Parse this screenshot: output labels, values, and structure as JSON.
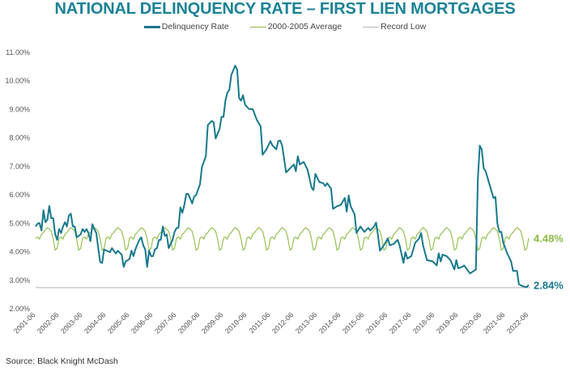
{
  "chart_data": {
    "type": "line",
    "title": "NATIONAL DELINQUENCY RATE – FIRST LIEN MORTGAGES",
    "source": "Source: Black Knight McDash",
    "ylim": [
      2,
      11
    ],
    "y_ticks": [
      "2.00%",
      "3.00%",
      "4.00%",
      "5.00%",
      "6.00%",
      "7.00%",
      "8.00%",
      "9.00%",
      "10.00%",
      "11.00%"
    ],
    "x_ticks": [
      "2001-06",
      "2002-06",
      "2003-06",
      "2004-06",
      "2005-06",
      "2006-06",
      "2007-06",
      "2008-06",
      "2009-06",
      "2010-06",
      "2011-06",
      "2012-06",
      "2013-06",
      "2014-06",
      "2015-06",
      "2016-06",
      "2017-06",
      "2018-06",
      "2019-06",
      "2020-06",
      "2021-06",
      "2022-06"
    ],
    "grid": false,
    "legend_position": "top",
    "colors": {
      "delinquency": "#17788c",
      "average": "#8dbb45",
      "record_low": "#b5b5b5",
      "title": "#1b8296"
    },
    "series": [
      {
        "name": "Delinquency Rate",
        "end_label": "2.84%",
        "points": [
          [
            "2001-06",
            4.89
          ],
          [
            "2001-07",
            4.99
          ],
          [
            "2001-08",
            5.01
          ],
          [
            "2001-09",
            4.75
          ],
          [
            "2001-10",
            5.46
          ],
          [
            "2001-11",
            5.04
          ],
          [
            "2001-12",
            5.13
          ],
          [
            "2002-01",
            5.61
          ],
          [
            "2002-02",
            5.18
          ],
          [
            "2002-03",
            5.18
          ],
          [
            "2002-04",
            4.61
          ],
          [
            "2002-05",
            4.42
          ],
          [
            "2002-06",
            4.8
          ],
          [
            "2002-07",
            4.66
          ],
          [
            "2002-08",
            4.89
          ],
          [
            "2002-09",
            5.04
          ],
          [
            "2002-10",
            4.89
          ],
          [
            "2002-11",
            5.27
          ],
          [
            "2002-12",
            5.34
          ],
          [
            "2003-01",
            4.89
          ],
          [
            "2003-02",
            4.89
          ],
          [
            "2003-03",
            4.51
          ],
          [
            "2003-05",
            4.61
          ],
          [
            "2003-06",
            4.8
          ],
          [
            "2003-07",
            4.7
          ],
          [
            "2003-08",
            4.8
          ],
          [
            "2003-09",
            4.66
          ],
          [
            "2003-10",
            4.37
          ],
          [
            "2003-11",
            4.97
          ],
          [
            "2003-12",
            4.8
          ],
          [
            "2004-01",
            4.66
          ],
          [
            "2004-02",
            4.13
          ],
          [
            "2004-03",
            3.64
          ],
          [
            "2004-04",
            3.61
          ],
          [
            "2004-05",
            4.08
          ],
          [
            "2004-08",
            3.99
          ],
          [
            "2004-09",
            4.13
          ],
          [
            "2004-11",
            3.94
          ],
          [
            "2004-12",
            4.04
          ],
          [
            "2005-02",
            3.9
          ],
          [
            "2005-03",
            3.47
          ],
          [
            "2005-04",
            3.66
          ],
          [
            "2005-06",
            3.75
          ],
          [
            "2005-07",
            4.04
          ],
          [
            "2005-08",
            3.85
          ],
          [
            "2005-09",
            4.09
          ],
          [
            "2005-11",
            4.42
          ],
          [
            "2005-12",
            4.51
          ],
          [
            "2006-01",
            4.23
          ],
          [
            "2006-02",
            4.09
          ],
          [
            "2006-03",
            3.47
          ],
          [
            "2006-04",
            4.04
          ],
          [
            "2006-05",
            3.85
          ],
          [
            "2006-06",
            3.85
          ],
          [
            "2006-07",
            4.09
          ],
          [
            "2006-08",
            4.13
          ],
          [
            "2006-09",
            4.42
          ],
          [
            "2006-10",
            4.42
          ],
          [
            "2006-11",
            4.89
          ],
          [
            "2006-12",
            4.56
          ],
          [
            "2007-01",
            4.61
          ],
          [
            "2007-02",
            4.13
          ],
          [
            "2007-04",
            4.42
          ],
          [
            "2007-05",
            4.7
          ],
          [
            "2007-06",
            4.83
          ],
          [
            "2007-07",
            4.85
          ],
          [
            "2007-08",
            5.56
          ],
          [
            "2007-09",
            5.37
          ],
          [
            "2007-10",
            5.65
          ],
          [
            "2007-11",
            6.03
          ],
          [
            "2007-12",
            6.03
          ],
          [
            "2008-02",
            5.7
          ],
          [
            "2008-03",
            5.94
          ],
          [
            "2008-04",
            5.99
          ],
          [
            "2008-06",
            6.37
          ],
          [
            "2008-07",
            6.98
          ],
          [
            "2008-09",
            7.36
          ],
          [
            "2008-10",
            8.45
          ],
          [
            "2008-12",
            8.6
          ],
          [
            "2009-01",
            8.55
          ],
          [
            "2009-02",
            7.98
          ],
          [
            "2009-04",
            8.31
          ],
          [
            "2009-05",
            8.74
          ],
          [
            "2009-06",
            8.74
          ],
          [
            "2009-07",
            9.31
          ],
          [
            "2009-08",
            9.59
          ],
          [
            "2009-09",
            9.69
          ],
          [
            "2009-10",
            10.21
          ],
          [
            "2009-12",
            10.54
          ],
          [
            "2010-01",
            10.4
          ],
          [
            "2010-02",
            9.4
          ],
          [
            "2010-03",
            9.31
          ],
          [
            "2010-04",
            9.5
          ],
          [
            "2010-05",
            9.17
          ],
          [
            "2010-07",
            9.02
          ],
          [
            "2010-09",
            9.01
          ],
          [
            "2010-11",
            8.64
          ],
          [
            "2011-01",
            8.41
          ],
          [
            "2011-02",
            7.41
          ],
          [
            "2011-04",
            7.6
          ],
          [
            "2011-06",
            7.89
          ],
          [
            "2011-07",
            7.74
          ],
          [
            "2011-09",
            7.6
          ],
          [
            "2011-10",
            7.89
          ],
          [
            "2011-11",
            7.91
          ],
          [
            "2011-12",
            7.73
          ],
          [
            "2012-02",
            6.79
          ],
          [
            "2012-06",
            7.07
          ],
          [
            "2012-07",
            6.83
          ],
          [
            "2012-08",
            7.36
          ],
          [
            "2012-09",
            7.07
          ],
          [
            "2012-11",
            7.16
          ],
          [
            "2013-01",
            6.88
          ],
          [
            "2013-03",
            6.26
          ],
          [
            "2013-04",
            6.17
          ],
          [
            "2013-05",
            6.74
          ],
          [
            "2013-07",
            6.45
          ],
          [
            "2013-09",
            6.41
          ],
          [
            "2013-10",
            6.31
          ],
          [
            "2013-11",
            6.41
          ],
          [
            "2014-01",
            6.22
          ],
          [
            "2014-02",
            5.51
          ],
          [
            "2014-04",
            5.6
          ],
          [
            "2014-06",
            5.65
          ],
          [
            "2014-08",
            5.89
          ],
          [
            "2014-09",
            5.41
          ],
          [
            "2014-10",
            5.98
          ],
          [
            "2014-11",
            5.6
          ],
          [
            "2015-01",
            5.32
          ],
          [
            "2015-02",
            4.66
          ],
          [
            "2015-04",
            4.89
          ],
          [
            "2015-06",
            4.7
          ],
          [
            "2015-08",
            4.84
          ],
          [
            "2015-09",
            4.75
          ],
          [
            "2015-11",
            4.89
          ],
          [
            "2015-12",
            5.03
          ],
          [
            "2016-01",
            4.56
          ],
          [
            "2016-02",
            4.04
          ],
          [
            "2016-04",
            4.23
          ],
          [
            "2016-06",
            4.47
          ],
          [
            "2016-07",
            4.23
          ],
          [
            "2016-09",
            4.28
          ],
          [
            "2016-11",
            4.42
          ],
          [
            "2016-12",
            4.23
          ],
          [
            "2017-02",
            3.61
          ],
          [
            "2017-03",
            3.99
          ],
          [
            "2017-04",
            3.76
          ],
          [
            "2017-06",
            3.85
          ],
          [
            "2017-08",
            4.32
          ],
          [
            "2017-10",
            4.47
          ],
          [
            "2017-11",
            4.66
          ],
          [
            "2017-12",
            4.23
          ],
          [
            "2018-02",
            3.71
          ],
          [
            "2018-05",
            3.66
          ],
          [
            "2018-07",
            3.52
          ],
          [
            "2018-08",
            3.95
          ],
          [
            "2018-09",
            3.66
          ],
          [
            "2018-10",
            3.9
          ],
          [
            "2018-12",
            3.85
          ],
          [
            "2019-02",
            3.71
          ],
          [
            "2019-04",
            3.38
          ],
          [
            "2019-05",
            3.71
          ],
          [
            "2019-06",
            3.42
          ],
          [
            "2019-08",
            3.47
          ],
          [
            "2019-09",
            3.52
          ],
          [
            "2019-12",
            3.24
          ],
          [
            "2020-03",
            3.38
          ],
          [
            "2020-04",
            6.55
          ],
          [
            "2020-05",
            7.73
          ],
          [
            "2020-06",
            7.59
          ],
          [
            "2020-07",
            6.93
          ],
          [
            "2020-08",
            6.83
          ],
          [
            "2020-10",
            6.36
          ],
          [
            "2020-12",
            5.89
          ],
          [
            "2021-01",
            5.93
          ],
          [
            "2021-02",
            4.99
          ],
          [
            "2021-03",
            4.7
          ],
          [
            "2021-04",
            4.7
          ],
          [
            "2021-05",
            4.32
          ],
          [
            "2021-07",
            3.95
          ],
          [
            "2021-09",
            3.66
          ],
          [
            "2021-10",
            3.33
          ],
          [
            "2021-12",
            3.33
          ],
          [
            "2022-01",
            2.86
          ],
          [
            "2022-03",
            2.79
          ],
          [
            "2022-05",
            2.76
          ],
          [
            "2022-06",
            2.84
          ]
        ]
      },
      {
        "name": "2000-2005 Average",
        "end_label": "4.48%",
        "monthly_values": {
          "Jan": 4.8,
          "Feb": 4.72,
          "Mar": 4.45,
          "Apr": 4.06,
          "May": 4.12,
          "Jun": 4.48,
          "Jul": 4.52,
          "Aug": 4.45,
          "Sep": 4.62,
          "Oct": 4.68,
          "Nov": 4.78,
          "Dec": 4.85
        }
      },
      {
        "name": "Record Low",
        "value": 2.74
      }
    ]
  }
}
